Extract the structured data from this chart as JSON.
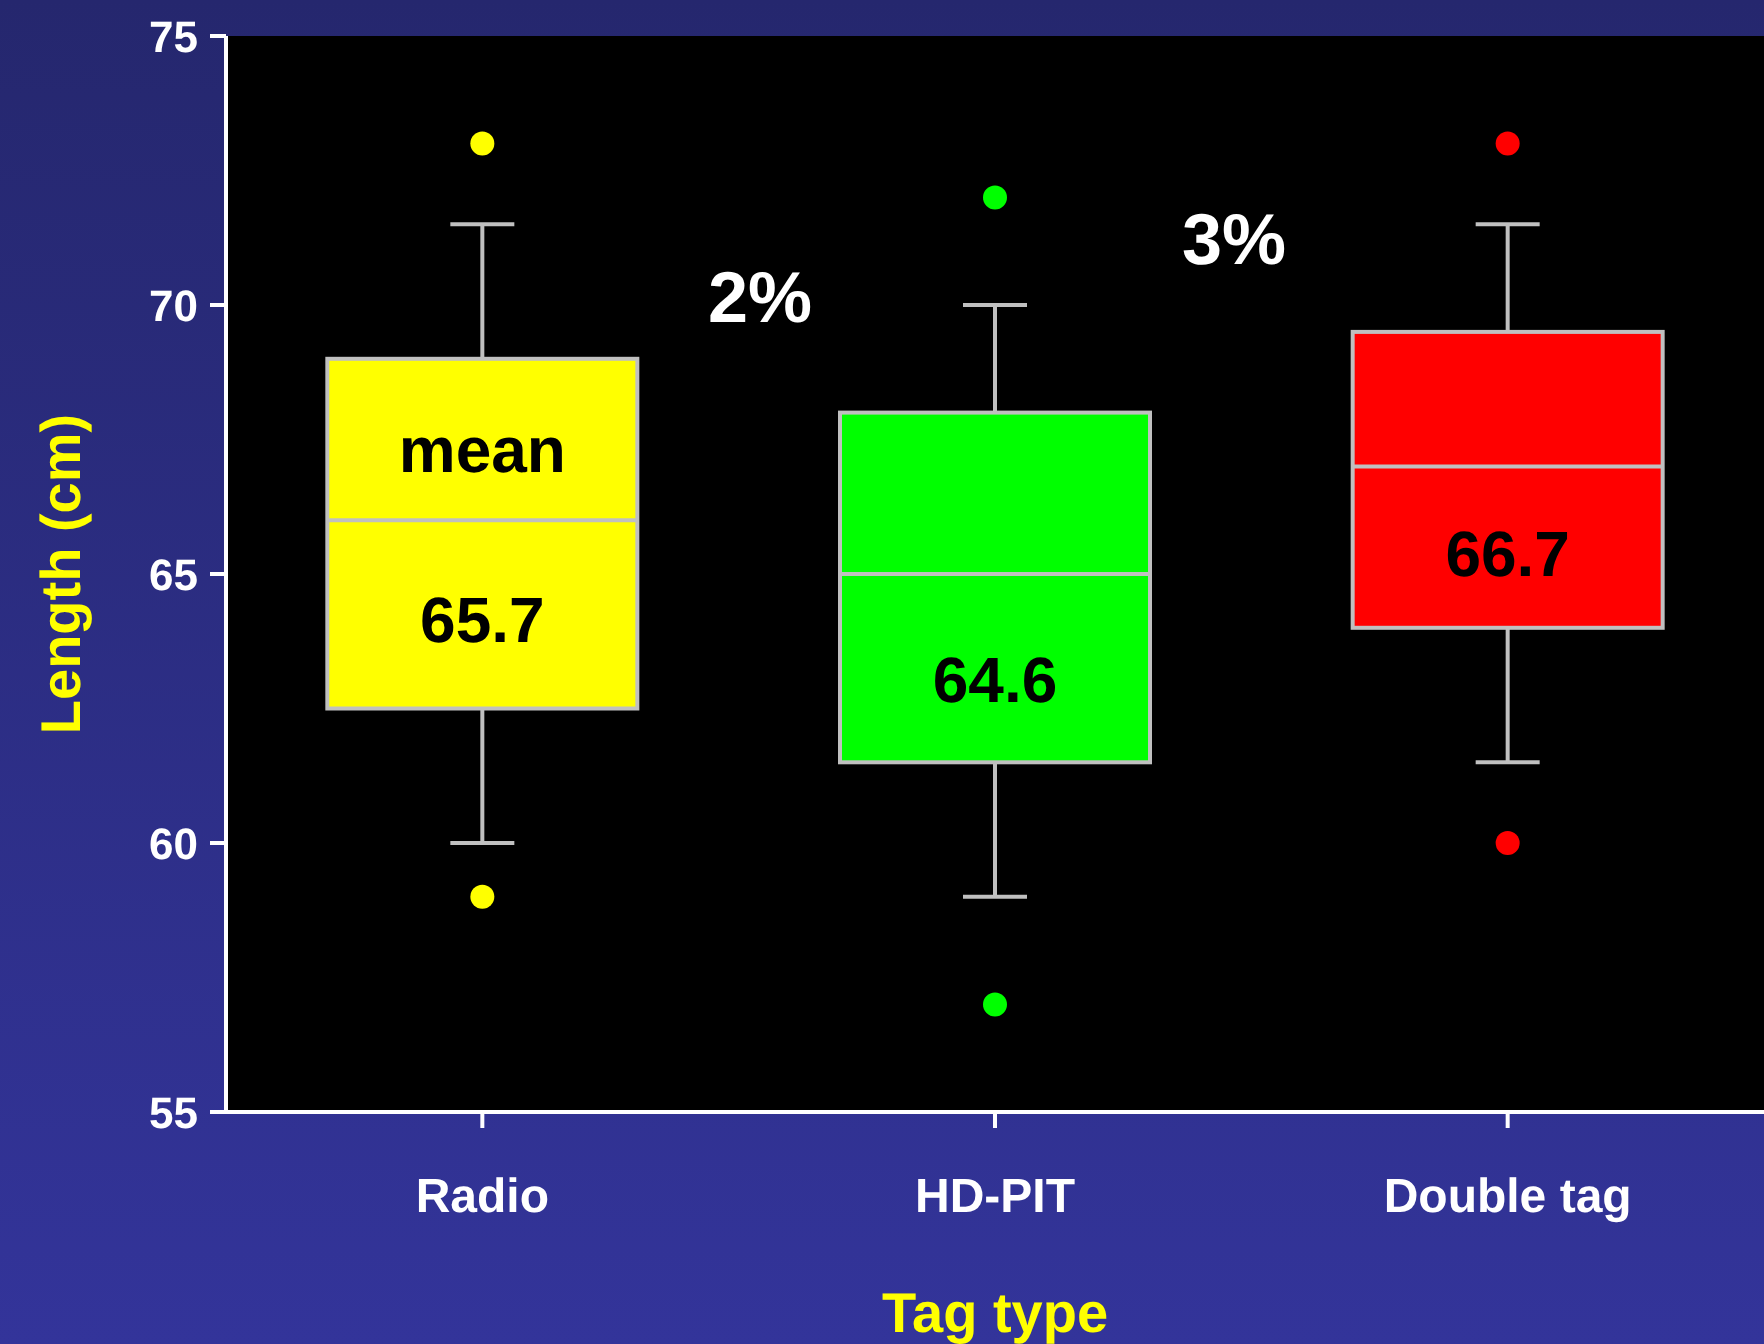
{
  "chart_data": {
    "type": "box",
    "categories": [
      "Radio",
      "HD-PIT",
      "Double tag"
    ],
    "colors": [
      "#ffff00",
      "#00ff00",
      "#ff0000"
    ],
    "boxes": [
      {
        "low": 60,
        "q1": 62.5,
        "median": 66,
        "q3": 69,
        "high": 71.5,
        "outliers": [
          73,
          59
        ]
      },
      {
        "low": 59,
        "q1": 61.5,
        "median": 65,
        "q3": 68,
        "high": 70,
        "outliers": [
          72,
          57
        ]
      },
      {
        "low": 61.5,
        "q1": 64,
        "median": 67,
        "q3": 69.5,
        "high": 71.5,
        "outliers": [
          73,
          60
        ]
      }
    ],
    "ylim": [
      55,
      75
    ],
    "yticks": [
      55,
      60,
      65,
      70,
      75
    ],
    "xlabel": "Tag type",
    "ylabel": "Length (cm)",
    "annotations": [
      "mean",
      "65.7",
      "64.6",
      "66.7",
      "2%",
      "3%"
    ]
  }
}
